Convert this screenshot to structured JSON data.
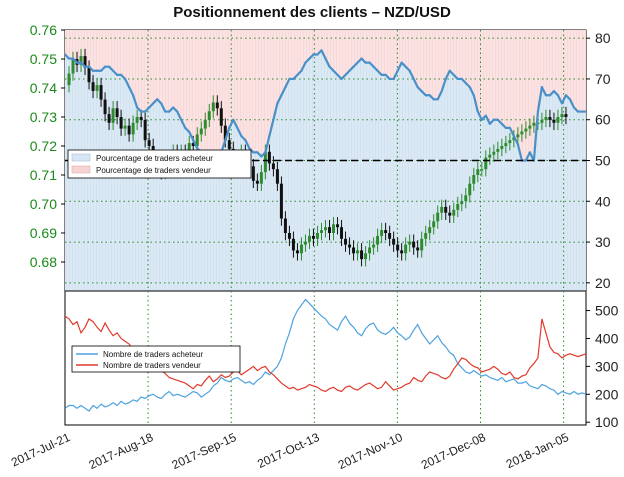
{
  "title": "Positionnement des clients – NZD/USD",
  "colors": {
    "buy": "#4a90c8",
    "sell": "#e03b2c",
    "candle_up": "#2e8b2e",
    "candle_down": "#111111",
    "buy_fill": "#dbe9f5",
    "sell_fill": "#f9dede"
  },
  "chart_data": [
    {
      "type": "line",
      "panel": "top",
      "x_labels": [
        "2017-Jul-21",
        "2017-Aug-18",
        "2017-Sep-15",
        "2017-Oct-13",
        "2017-Nov-10",
        "2017-Dec-08",
        "2018-Jan-05"
      ],
      "left_axis": {
        "ticks": [
          "0.68",
          "0.69",
          "0.70",
          "0.71",
          "0.72",
          "0.73",
          "0.74",
          "0.75",
          "0.76"
        ],
        "ylim": [
          0.67,
          0.76
        ]
      },
      "right_axis": {
        "ticks": [
          "20",
          "30",
          "40",
          "50",
          "60",
          "70",
          "80"
        ],
        "ylim": [
          18,
          82
        ]
      },
      "reference_line": 50,
      "legend": [
        "Pourcentage de traders acheteur",
        "Pourcentage de traders vendeur"
      ],
      "legend_position": "upper-left",
      "series": [
        {
          "name": "Pourcentage de traders acheteur",
          "axis": "right",
          "values": [
            76,
            75,
            75,
            74,
            74,
            73,
            73,
            72,
            72,
            72,
            73,
            73,
            72,
            71,
            71,
            70,
            68,
            66,
            63,
            62,
            62,
            63,
            64,
            65,
            64,
            62,
            62,
            63,
            62,
            60,
            58,
            57,
            55,
            53,
            52,
            51,
            50,
            48,
            50,
            52,
            55,
            58,
            60,
            58,
            56,
            55,
            53,
            52,
            52,
            51,
            52,
            56,
            60,
            64,
            66,
            68,
            70,
            70,
            71,
            72,
            74,
            75,
            76,
            76,
            77,
            75,
            73,
            72,
            71,
            70,
            71,
            72,
            73,
            74,
            75,
            74,
            74,
            73,
            72,
            71,
            71,
            70,
            70,
            72,
            74,
            73,
            72,
            70,
            68,
            67,
            66,
            66,
            65,
            65,
            67,
            70,
            72,
            71,
            70,
            70,
            69,
            68,
            66,
            62,
            60,
            61,
            59,
            60,
            60,
            59,
            58,
            58,
            56,
            54,
            50,
            50,
            52,
            50,
            62,
            68,
            66,
            66,
            67,
            66,
            64,
            66,
            65,
            63,
            62,
            62,
            62
          ]
        },
        {
          "name": "Pourcentage de traders vendeur",
          "axis": "right",
          "values": [
            24,
            25,
            25,
            26,
            26,
            27,
            27,
            28,
            28,
            28,
            27,
            27,
            28,
            29,
            29,
            30,
            32,
            34,
            37,
            38,
            38,
            37,
            36,
            35,
            36,
            38,
            38,
            37,
            38,
            40,
            42,
            43,
            45,
            47,
            48,
            49,
            50,
            52,
            50,
            48,
            45,
            42,
            40,
            42,
            44,
            45,
            47,
            48,
            48,
            49,
            48,
            44,
            40,
            36,
            34,
            32,
            30,
            30,
            29,
            28,
            26,
            25,
            24,
            24,
            23,
            25,
            27,
            28,
            29,
            30,
            29,
            28,
            27,
            26,
            25,
            26,
            26,
            27,
            28,
            29,
            29,
            30,
            30,
            28,
            26,
            27,
            28,
            30,
            32,
            33,
            34,
            34,
            35,
            35,
            33,
            30,
            28,
            29,
            30,
            30,
            31,
            32,
            34,
            38,
            40,
            39,
            41,
            40,
            40,
            41,
            42,
            42,
            44,
            46,
            50,
            50,
            48,
            50,
            38,
            32,
            34,
            34,
            33,
            34,
            36,
            34,
            35,
            37,
            38,
            38,
            38
          ]
        },
        {
          "name": "price",
          "axis": "left",
          "type": "candlestick",
          "values": [
            0.741,
            0.745,
            0.75,
            0.748,
            0.751,
            0.747,
            0.742,
            0.739,
            0.741,
            0.736,
            0.731,
            0.728,
            0.733,
            0.73,
            0.726,
            0.727,
            0.724,
            0.728,
            0.73,
            0.729,
            0.722,
            0.72,
            0.716,
            0.713,
            0.711,
            0.714,
            0.712,
            0.718,
            0.715,
            0.718,
            0.716,
            0.721,
            0.72,
            0.724,
            0.726,
            0.729,
            0.732,
            0.735,
            0.733,
            0.727,
            0.722,
            0.719,
            0.714,
            0.716,
            0.718,
            0.712,
            0.713,
            0.708,
            0.707,
            0.711,
            0.718,
            0.714,
            0.712,
            0.707,
            0.695,
            0.69,
            0.688,
            0.684,
            0.683,
            0.686,
            0.687,
            0.689,
            0.688,
            0.69,
            0.691,
            0.692,
            0.69,
            0.693,
            0.692,
            0.688,
            0.686,
            0.685,
            0.683,
            0.684,
            0.681,
            0.683,
            0.685,
            0.686,
            0.689,
            0.691,
            0.69,
            0.688,
            0.686,
            0.684,
            0.683,
            0.686,
            0.687,
            0.685,
            0.684,
            0.688,
            0.69,
            0.692,
            0.694,
            0.697,
            0.699,
            0.697,
            0.696,
            0.698,
            0.7,
            0.701,
            0.703,
            0.707,
            0.71,
            0.712,
            0.712,
            0.716,
            0.717,
            0.718,
            0.719,
            0.72,
            0.721,
            0.722,
            0.723,
            0.724,
            0.725,
            0.726,
            0.727,
            0.728,
            0.728,
            0.729,
            0.73,
            0.729,
            0.728,
            0.73,
            0.731,
            0.73
          ]
        }
      ]
    },
    {
      "type": "line",
      "panel": "bottom",
      "right_axis": {
        "ticks": [
          "100",
          "200",
          "300",
          "400",
          "500"
        ],
        "ylim": [
          90,
          570
        ]
      },
      "legend": [
        "Nombre de traders acheteur",
        "Nombre de traders vendeur"
      ],
      "legend_position": "upper-left",
      "series": [
        {
          "name": "Nombre de traders acheteur",
          "values": [
            150,
            160,
            160,
            150,
            160,
            150,
            140,
            160,
            150,
            165,
            155,
            160,
            170,
            160,
            175,
            165,
            170,
            180,
            175,
            190,
            185,
            195,
            200,
            190,
            185,
            200,
            210,
            195,
            200,
            195,
            190,
            200,
            210,
            205,
            190,
            200,
            210,
            230,
            240,
            260,
            250,
            245,
            255,
            260,
            250,
            240,
            245,
            235,
            250,
            260,
            280,
            270,
            285,
            300,
            330,
            380,
            420,
            470,
            500,
            520,
            540,
            525,
            510,
            495,
            480,
            470,
            450,
            440,
            430,
            460,
            480,
            455,
            440,
            420,
            410,
            435,
            450,
            455,
            430,
            420,
            415,
            425,
            440,
            420,
            410,
            395,
            405,
            430,
            450,
            420,
            400,
            380,
            395,
            410,
            385,
            370,
            350,
            340,
            310,
            295,
            280,
            275,
            285,
            275,
            265,
            270,
            260,
            255,
            250,
            260,
            245,
            250,
            255,
            240,
            240,
            245,
            230,
            225,
            220,
            235,
            230,
            220,
            215,
            200,
            210,
            205,
            200,
            210,
            200,
            205,
            200
          ]
        },
        {
          "name": "Nombre de traders vendeur",
          "values": [
            480,
            470,
            450,
            460,
            420,
            440,
            470,
            460,
            440,
            425,
            455,
            430,
            410,
            420,
            400,
            390,
            380,
            360,
            340,
            330,
            320,
            310,
            305,
            290,
            285,
            275,
            260,
            255,
            250,
            245,
            240,
            230,
            220,
            235,
            230,
            250,
            265,
            245,
            255,
            270,
            260,
            265,
            280,
            285,
            270,
            280,
            290,
            300,
            285,
            295,
            300,
            280,
            270,
            255,
            240,
            230,
            220,
            225,
            215,
            220,
            225,
            235,
            230,
            225,
            215,
            210,
            220,
            225,
            215,
            210,
            225,
            230,
            220,
            215,
            225,
            235,
            240,
            230,
            220,
            225,
            245,
            230,
            215,
            220,
            225,
            235,
            240,
            260,
            250,
            245,
            265,
            280,
            275,
            270,
            260,
            255,
            265,
            290,
            310,
            330,
            325,
            310,
            300,
            295,
            280,
            285,
            290,
            300,
            290,
            275,
            270,
            280,
            260,
            255,
            265,
            270,
            295,
            310,
            330,
            470,
            420,
            370,
            350,
            345,
            330,
            340,
            345,
            340,
            335,
            340,
            345
          ]
        }
      ]
    }
  ]
}
